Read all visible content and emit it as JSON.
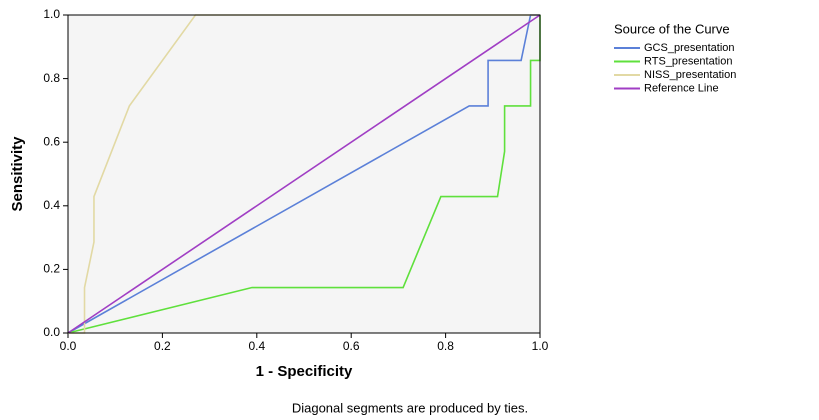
{
  "chart_data": {
    "type": "line",
    "xlabel": "1 - Specificity",
    "ylabel": "Sensitivity",
    "legend_title": "Source of the Curve",
    "note": "Diagonal segments are produced by ties.",
    "xlim": [
      0,
      1
    ],
    "ylim": [
      0,
      1
    ],
    "xticks": [
      {
        "value": 0,
        "label": "0.0"
      },
      {
        "value": 0.2,
        "label": "0.2"
      },
      {
        "value": 0.4,
        "label": "0.4"
      },
      {
        "value": 0.6,
        "label": "0.6"
      },
      {
        "value": 0.8,
        "label": "0.8"
      },
      {
        "value": 1,
        "label": "1.0"
      }
    ],
    "yticks": [
      {
        "value": 0,
        "label": "0.0"
      },
      {
        "value": 0.2,
        "label": "0.2"
      },
      {
        "value": 0.4,
        "label": "0.4"
      },
      {
        "value": 0.6,
        "label": "0.6"
      },
      {
        "value": 0.8,
        "label": "0.8"
      },
      {
        "value": 1,
        "label": "1.0"
      }
    ],
    "series": [
      {
        "name": "GCS_presentation",
        "color": "#5b80d8",
        "x": [
          0,
          0.85,
          0.89,
          0.89,
          0.96,
          0.98,
          1
        ],
        "values": [
          0,
          0.714,
          0.714,
          0.857,
          0.857,
          1,
          1
        ]
      },
      {
        "name": "RTS_presentation",
        "color": "#5fe03c",
        "x": [
          0,
          0.39,
          0.71,
          0.79,
          0.91,
          0.925,
          0.925,
          0.98,
          0.98,
          1,
          1
        ],
        "values": [
          0,
          0.143,
          0.143,
          0.429,
          0.429,
          0.571,
          0.714,
          0.714,
          0.857,
          0.857,
          1
        ]
      },
      {
        "name": "NISS_presentation",
        "color": "#e2d9a4",
        "x": [
          0,
          0.035,
          0.035,
          0.055,
          0.055,
          0.13,
          0.27,
          1
        ],
        "values": [
          0,
          0,
          0.143,
          0.286,
          0.429,
          0.714,
          1,
          1
        ]
      },
      {
        "name": "Reference Line",
        "color": "#a03ec4",
        "x": [
          0,
          1
        ],
        "values": [
          0,
          1
        ]
      }
    ]
  }
}
